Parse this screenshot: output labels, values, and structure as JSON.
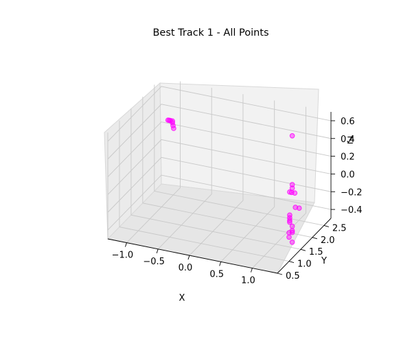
{
  "chart_data": {
    "type": "scatter3d",
    "title": "Best Track 1 - All Points",
    "xlabel": "X",
    "ylabel": "Y",
    "zlabel": "Z",
    "xlim": [
      -1.3,
      1.4
    ],
    "ylim": [
      0.5,
      2.8
    ],
    "zlim": [
      -0.5,
      0.7
    ],
    "x_ticks": [
      "−1.0",
      "−0.5",
      "0.0",
      "0.5",
      "1.0"
    ],
    "y_ticks": [
      "0.5",
      "1.0",
      "1.5",
      "2.0",
      "2.5"
    ],
    "z_ticks": [
      "−0.4",
      "−0.2",
      "0.0",
      "0.2",
      "0.4",
      "0.6"
    ],
    "grid": true,
    "marker_color": "#ff00ff",
    "series": [
      {
        "points": [
          {
            "x": -1.12,
            "y": 2.6,
            "z": 0.3
          },
          {
            "x": -1.1,
            "y": 2.6,
            "z": 0.3
          },
          {
            "x": -1.08,
            "y": 2.6,
            "z": 0.3
          },
          {
            "x": -1.05,
            "y": 2.6,
            "z": 0.3
          },
          {
            "x": -1.05,
            "y": 2.6,
            "z": 0.28
          },
          {
            "x": -1.04,
            "y": 2.6,
            "z": 0.25
          },
          {
            "x": -1.03,
            "y": 2.6,
            "z": 0.22
          },
          {
            "x": 1.08,
            "y": 2.0,
            "z": 0.6
          },
          {
            "x": 1.08,
            "y": 2.0,
            "z": 0.05
          },
          {
            "x": 1.08,
            "y": 2.0,
            "z": 0.01
          },
          {
            "x": 1.07,
            "y": 2.0,
            "z": -0.04
          },
          {
            "x": 1.04,
            "y": 2.0,
            "z": -0.04
          },
          {
            "x": 1.12,
            "y": 2.0,
            "z": -0.04
          },
          {
            "x": 1.13,
            "y": 2.0,
            "z": -0.2
          },
          {
            "x": 1.19,
            "y": 2.0,
            "z": -0.2
          },
          {
            "x": 1.04,
            "y": 2.0,
            "z": -0.3
          },
          {
            "x": 1.04,
            "y": 2.0,
            "z": -0.33
          },
          {
            "x": 1.04,
            "y": 2.0,
            "z": -0.36
          },
          {
            "x": 1.04,
            "y": 2.0,
            "z": -0.38
          },
          {
            "x": 1.08,
            "y": 2.0,
            "z": -0.42
          },
          {
            "x": 1.08,
            "y": 2.0,
            "z": -0.47
          },
          {
            "x": 1.08,
            "y": 2.0,
            "z": -0.49
          },
          {
            "x": 1.03,
            "y": 2.0,
            "z": -0.5
          },
          {
            "x": 1.03,
            "y": 2.0,
            "z": -0.55
          },
          {
            "x": 1.08,
            "y": 2.0,
            "z": -0.6
          }
        ]
      }
    ]
  }
}
